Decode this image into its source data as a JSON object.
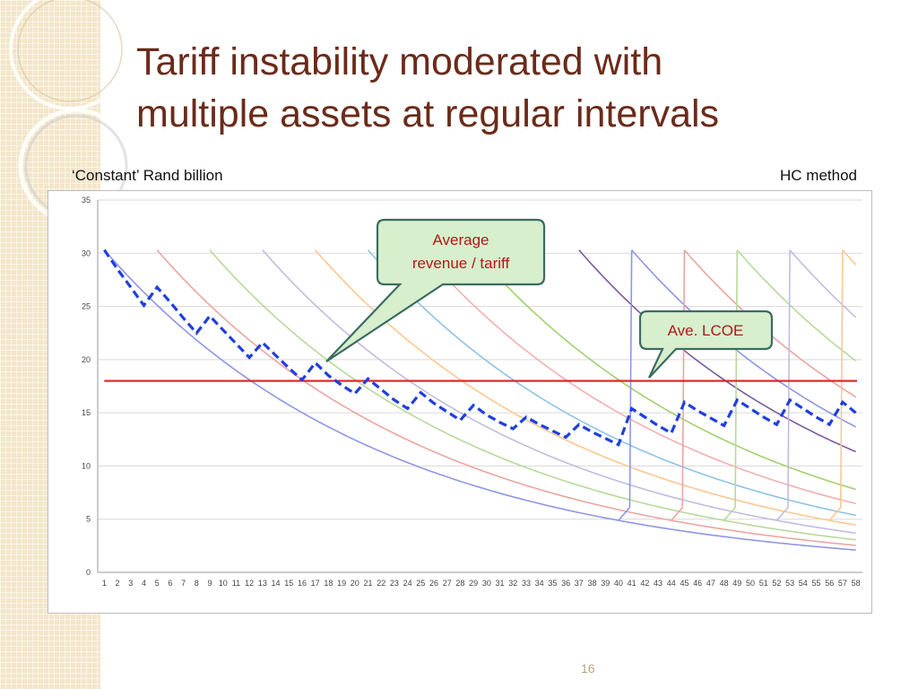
{
  "slide": {
    "title_line1": "Tariff instability moderated with",
    "title_line2": "multiple assets at regular intervals",
    "unit_left": "‘Constant’ Rand billion",
    "unit_right": "HC method",
    "page_number": "16"
  },
  "colors": {
    "title": "#6b2b1a",
    "revenue_line": "#1f3fe0",
    "lcoe_line": "#e02020",
    "callout_fill": "#d7efcd",
    "callout_border": "#3d6b62",
    "callout_text": "#b01818"
  },
  "chart_data": {
    "type": "line",
    "x_categories": [
      "1",
      "2",
      "3",
      "4",
      "5",
      "6",
      "7",
      "8",
      "9",
      "10",
      "11",
      "12",
      "13",
      "14",
      "15",
      "16",
      "17",
      "18",
      "19",
      "20",
      "21",
      "22",
      "23",
      "24",
      "25",
      "26",
      "27",
      "28",
      "29",
      "30",
      "31",
      "32",
      "33",
      "34",
      "35",
      "36",
      "37",
      "38",
      "39",
      "40",
      "41",
      "42",
      "43",
      "44",
      "45",
      "46",
      "47",
      "48",
      "49",
      "50",
      "51",
      "52",
      "53",
      "54",
      "55",
      "56",
      "57",
      "58"
    ],
    "ylim": [
      0,
      35
    ],
    "y_ticks": [
      0,
      5,
      10,
      15,
      20,
      25,
      30,
      35
    ],
    "grid": true,
    "annotations": [
      {
        "text_line1": "Average",
        "text_line2": "revenue / tariff",
        "points_to": "dashed revenue line"
      },
      {
        "text_line1": "Ave. LCOE",
        "points_to": "red LCOE line"
      }
    ],
    "lcoe": {
      "value": 18.0
    },
    "asset_curves": [
      {
        "start": 1,
        "color": "#8f96e6"
      },
      {
        "start": 5,
        "color": "#eaa6a0"
      },
      {
        "start": 9,
        "color": "#b8d99a"
      },
      {
        "start": 13,
        "color": "#c3bbe0"
      },
      {
        "start": 17,
        "color": "#fcc890"
      },
      {
        "start": 21,
        "color": "#8fc3e6"
      },
      {
        "start": 25,
        "color": "#f2b0b0"
      },
      {
        "start": 29,
        "color": "#a2d06f"
      },
      {
        "start": 37,
        "color": "#7a5a9e"
      }
    ],
    "sawtooth_curves": [
      {
        "start": 41,
        "peak": 30.3,
        "floor": 6.1,
        "color": "#8f96e6"
      },
      {
        "start": 45,
        "peak": 30.3,
        "floor": 6.1,
        "color": "#eaa6a0"
      },
      {
        "start": 49,
        "peak": 30.3,
        "floor": 6.1,
        "color": "#b8d99a"
      },
      {
        "start": 53,
        "peak": 30.3,
        "floor": 6.1,
        "color": "#c3bbe0"
      },
      {
        "start": 57,
        "peak": 30.3,
        "floor": 6.1,
        "color": "#fcc890"
      }
    ],
    "curve_decay": {
      "peak": 30.3,
      "rate": 0.0468
    },
    "revenue_tariff": [
      30.3,
      28.5,
      26.8,
      25.1,
      26.8,
      25.4,
      23.9,
      22.5,
      24.1,
      22.8,
      21.5,
      20.2,
      21.6,
      20.4,
      19.2,
      18.1,
      19.7,
      18.5,
      17.6,
      16.8,
      18.2,
      17.2,
      16.2,
      15.4,
      16.9,
      15.9,
      15.1,
      14.3,
      15.7,
      14.8,
      14.1,
      13.5,
      14.6,
      13.9,
      13.3,
      12.7,
      13.9,
      13.2,
      12.6,
      12.0,
      15.4,
      14.6,
      13.8,
      13.1,
      16.0,
      15.2,
      14.5,
      13.8,
      16.2,
      15.4,
      14.6,
      13.9,
      16.2,
      15.4,
      14.6,
      13.9,
      16.0,
      15.0
    ]
  }
}
